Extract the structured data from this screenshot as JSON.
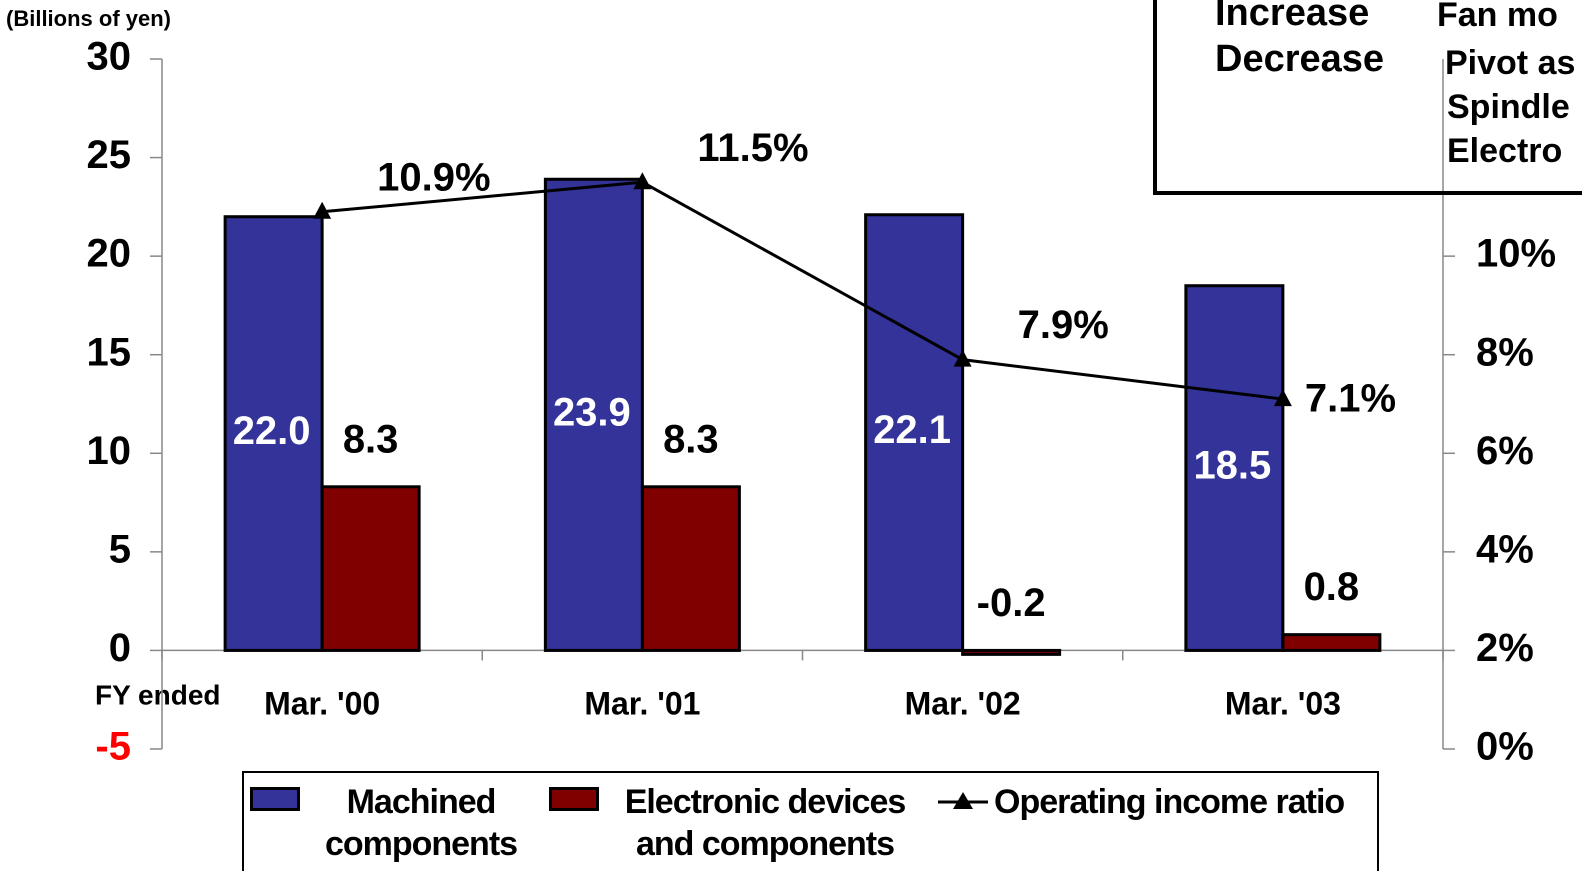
{
  "chart_data": {
    "type": "bar",
    "y_axis_label": "(Billions of yen)",
    "x_axis_label": "FY ended",
    "categories": [
      "Mar. '00",
      "Mar. '01",
      "Mar. '02",
      "Mar. '03"
    ],
    "series": [
      {
        "name": "Machined components",
        "color": "#333399",
        "values": [
          22.0,
          23.9,
          22.1,
          18.5
        ],
        "value_labels": [
          "22.0",
          "23.9",
          "22.1",
          "18.5"
        ]
      },
      {
        "name": "Electronic devices and components",
        "color": "#800000",
        "values": [
          8.3,
          8.3,
          -0.2,
          0.8
        ],
        "value_labels": [
          "8.3",
          "8.3",
          "-0.2",
          "0.8"
        ]
      },
      {
        "name": "Operating income ratio",
        "type": "line",
        "axis": "y2",
        "color": "#000000",
        "values": [
          10.9,
          11.5,
          7.9,
          7.1
        ],
        "value_labels": [
          "10.9%",
          "11.5%",
          "7.9%",
          "7.1%"
        ]
      }
    ],
    "ylim": [
      -5,
      30
    ],
    "yticks": [
      30,
      25,
      20,
      15,
      10,
      5,
      0,
      -5
    ],
    "negative_tick_color": "#ff0000",
    "y2lim": [
      0,
      14
    ],
    "y2ticks": [
      {
        "value": 10,
        "label": "10%"
      },
      {
        "value": 8,
        "label": "8%"
      },
      {
        "value": 6,
        "label": "6%"
      },
      {
        "value": 4,
        "label": "4%"
      },
      {
        "value": 2,
        "label": "2%"
      },
      {
        "value": 0,
        "label": "0%"
      }
    ],
    "annotation_box": {
      "rows": [
        [
          "Increase",
          "Fan mo"
        ],
        [
          "Decrease",
          "Pivot as"
        ],
        [
          "",
          "Spindle"
        ],
        [
          "",
          "Electro"
        ]
      ]
    }
  }
}
